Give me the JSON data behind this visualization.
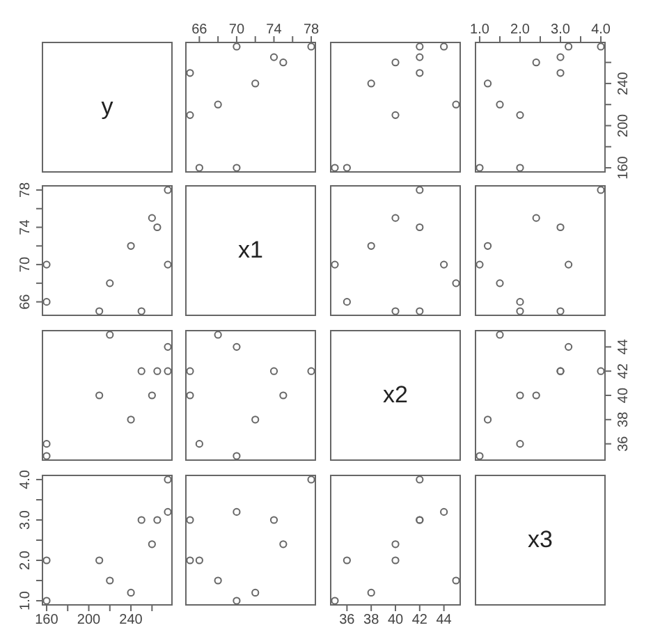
{
  "chart_data": [
    {
      "type": "other",
      "title": "y"
    },
    {
      "type": "scatter",
      "x": [
        70,
        66,
        65,
        68,
        72,
        65,
        75,
        74,
        78,
        70
      ],
      "values": [
        160,
        160,
        210,
        220,
        240,
        250,
        260,
        265,
        275,
        275
      ],
      "xlim": [
        64.48,
        78.52
      ],
      "ylim": [
        155.4,
        279.6
      ],
      "xticks": [
        66,
        {
          "value": 68,
          "label": null
        },
        70,
        {
          "value": 72,
          "label": null
        },
        74,
        {
          "value": 76,
          "label": null
        },
        78
      ],
      "tick_labels": "x",
      "marker": "circle",
      "color": "#666666"
    },
    {
      "type": "scatter",
      "x": [
        35,
        36,
        40,
        45,
        38,
        42,
        40,
        42,
        42,
        44
      ],
      "values": [
        160,
        160,
        210,
        220,
        240,
        250,
        260,
        265,
        275,
        275
      ],
      "xlim": [
        34.6,
        45.4
      ],
      "ylim": [
        155.4,
        279.6
      ],
      "tick_labels": false,
      "marker": "circle",
      "color": "#666666"
    },
    {
      "type": "scatter",
      "x": [
        1.0,
        2.0,
        2.0,
        1.5,
        1.2,
        3.0,
        2.4,
        3.0,
        4.0,
        3.2
      ],
      "values": [
        160,
        160,
        210,
        220,
        240,
        250,
        260,
        265,
        275,
        275
      ],
      "xlim": [
        0.88,
        4.12
      ],
      "ylim": [
        155.4,
        279.6
      ],
      "xticks": [
        {
          "value": 1,
          "label": "1.0"
        },
        {
          "value": 1.5,
          "label": null
        },
        {
          "value": 2,
          "label": "2.0"
        },
        {
          "value": 2.5,
          "label": null
        },
        {
          "value": 3,
          "label": "3.0"
        },
        {
          "value": 3.5,
          "label": null
        },
        {
          "value": 4,
          "label": "4.0"
        }
      ],
      "yticks": [
        160,
        {
          "value": 180,
          "label": null
        },
        200,
        {
          "value": 220,
          "label": null
        },
        240,
        {
          "value": 260,
          "label": null
        }
      ],
      "marker": "circle",
      "color": "#666666"
    },
    {
      "type": "scatter",
      "x": [
        160,
        160,
        210,
        220,
        240,
        250,
        260,
        265,
        275,
        275
      ],
      "values": [
        70,
        66,
        65,
        68,
        72,
        65,
        75,
        74,
        78,
        70
      ],
      "xlim": [
        155.4,
        279.6
      ],
      "ylim": [
        64.48,
        78.52
      ],
      "yticks": [
        66,
        {
          "value": 68,
          "label": null
        },
        70,
        {
          "value": 72,
          "label": null
        },
        74,
        {
          "value": 76,
          "label": null
        },
        78
      ],
      "tick_labels": "y",
      "marker": "circle",
      "color": "#666666"
    },
    {
      "type": "other",
      "title": "x1"
    },
    {
      "type": "scatter",
      "x": [
        35,
        36,
        40,
        45,
        38,
        42,
        40,
        42,
        42,
        44
      ],
      "values": [
        70,
        66,
        65,
        68,
        72,
        65,
        75,
        74,
        78,
        70
      ],
      "xlim": [
        34.6,
        45.4
      ],
      "ylim": [
        64.48,
        78.52
      ],
      "tick_labels": false,
      "marker": "circle",
      "color": "#666666"
    },
    {
      "type": "scatter",
      "x": [
        1.0,
        2.0,
        2.0,
        1.5,
        1.2,
        3.0,
        2.4,
        3.0,
        4.0,
        3.2
      ],
      "values": [
        70,
        66,
        65,
        68,
        72,
        65,
        75,
        74,
        78,
        70
      ],
      "xlim": [
        0.88,
        4.12
      ],
      "ylim": [
        64.48,
        78.52
      ],
      "tick_labels": false,
      "marker": "circle",
      "color": "#666666"
    },
    {
      "type": "scatter",
      "x": [
        160,
        160,
        210,
        220,
        240,
        250,
        260,
        265,
        275,
        275
      ],
      "values": [
        35,
        36,
        40,
        45,
        38,
        42,
        40,
        42,
        42,
        44
      ],
      "xlim": [
        155.4,
        279.6
      ],
      "ylim": [
        34.6,
        45.4
      ],
      "tick_labels": false,
      "marker": "circle",
      "color": "#666666"
    },
    {
      "type": "scatter",
      "x": [
        70,
        66,
        65,
        68,
        72,
        65,
        75,
        74,
        78,
        70
      ],
      "values": [
        35,
        36,
        40,
        45,
        38,
        42,
        40,
        42,
        42,
        44
      ],
      "xlim": [
        64.48,
        78.52
      ],
      "ylim": [
        34.6,
        45.4
      ],
      "tick_labels": false,
      "marker": "circle",
      "color": "#666666"
    },
    {
      "type": "other",
      "title": "x2"
    },
    {
      "type": "scatter",
      "x": [
        1.0,
        2.0,
        2.0,
        1.5,
        1.2,
        3.0,
        2.4,
        3.0,
        4.0,
        3.2
      ],
      "values": [
        35,
        36,
        40,
        45,
        38,
        42,
        40,
        42,
        42,
        44
      ],
      "xlim": [
        0.88,
        4.12
      ],
      "ylim": [
        34.6,
        45.4
      ],
      "yticks": [
        36,
        38,
        40,
        42,
        44
      ],
      "tick_labels": "y",
      "marker": "circle",
      "color": "#666666"
    },
    {
      "type": "scatter",
      "x": [
        160,
        160,
        210,
        220,
        240,
        250,
        260,
        265,
        275,
        275
      ],
      "values": [
        1.0,
        2.0,
        2.0,
        1.5,
        1.2,
        3.0,
        2.4,
        3.0,
        4.0,
        3.2
      ],
      "xlim": [
        155.4,
        279.6
      ],
      "ylim": [
        0.88,
        4.12
      ],
      "xticks": [
        160,
        {
          "value": 180,
          "label": null
        },
        200,
        {
          "value": 220,
          "label": null
        },
        240,
        {
          "value": 260,
          "label": null
        }
      ],
      "yticks": [
        {
          "value": 1,
          "label": "1.0"
        },
        {
          "value": 1.5,
          "label": null
        },
        {
          "value": 2,
          "label": "2.0"
        },
        {
          "value": 2.5,
          "label": null
        },
        {
          "value": 3,
          "label": "3.0"
        },
        {
          "value": 3.5,
          "label": null
        },
        {
          "value": 4,
          "label": "4.0"
        }
      ],
      "marker": "circle",
      "color": "#666666"
    },
    {
      "type": "scatter",
      "x": [
        70,
        66,
        65,
        68,
        72,
        65,
        75,
        74,
        78,
        70
      ],
      "values": [
        1.0,
        2.0,
        2.0,
        1.5,
        1.2,
        3.0,
        2.4,
        3.0,
        4.0,
        3.2
      ],
      "xlim": [
        64.48,
        78.52
      ],
      "ylim": [
        0.88,
        4.12
      ],
      "tick_labels": false,
      "marker": "circle",
      "color": "#666666"
    },
    {
      "type": "scatter",
      "x": [
        35,
        36,
        40,
        45,
        38,
        42,
        40,
        42,
        42,
        44
      ],
      "values": [
        1.0,
        2.0,
        2.0,
        1.5,
        1.2,
        3.0,
        2.4,
        3.0,
        4.0,
        3.2
      ],
      "xlim": [
        34.6,
        45.4
      ],
      "ylim": [
        0.88,
        4.12
      ],
      "xticks": [
        36,
        38,
        40,
        42,
        44
      ],
      "tick_labels": "x",
      "marker": "circle",
      "color": "#666666"
    },
    {
      "type": "other",
      "title": "x3"
    }
  ]
}
